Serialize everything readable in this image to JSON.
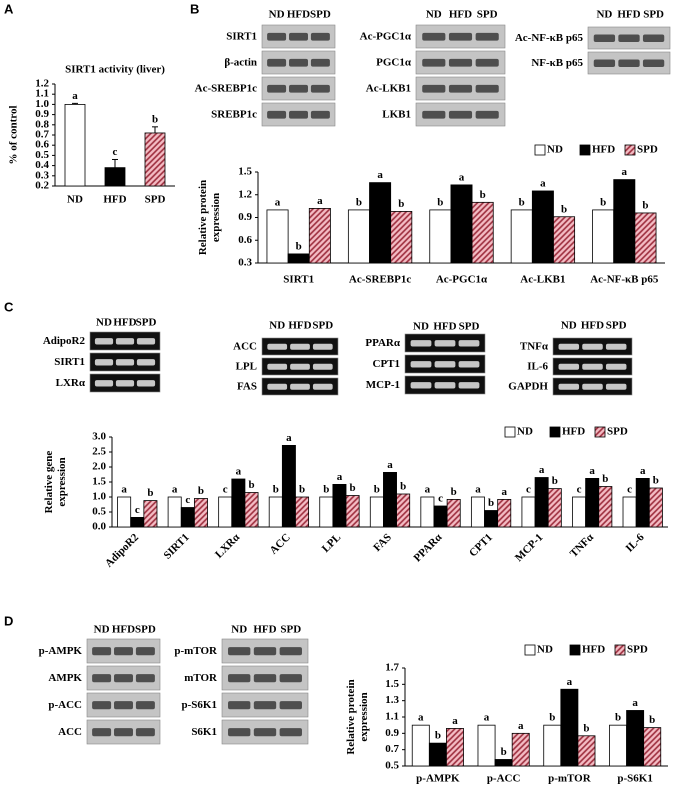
{
  "panels": [
    "A",
    "B",
    "C",
    "D"
  ],
  "blots": [
    {
      "lanes": [
        "ND",
        "HFD",
        "SPD"
      ],
      "rows": [
        "SIRT1",
        "β-actin",
        "Ac-SREBP1c",
        "SREBP1c"
      ]
    },
    {
      "lanes": [
        "ND",
        "HFD",
        "SPD"
      ],
      "rows": [
        "Ac-PGC1α",
        "PGC1α",
        "Ac-LKB1",
        "LKB1"
      ]
    },
    {
      "lanes": [
        "ND",
        "HFD",
        "SPD"
      ],
      "rows": [
        "Ac-NF-κB p65",
        "NF-κB p65"
      ]
    },
    {
      "lanes": [
        "ND",
        "HFD",
        "SPD"
      ],
      "rows": [
        "AdipoR2",
        "SIRT1",
        "LXRα"
      ]
    },
    {
      "lanes": [
        "ND",
        "HFD",
        "SPD"
      ],
      "rows": [
        "ACC",
        "LPL",
        "FAS"
      ]
    },
    {
      "lanes": [
        "ND",
        "HFD",
        "SPD"
      ],
      "rows": [
        "PPARα",
        "CPT1",
        "MCP-1"
      ]
    },
    {
      "lanes": [
        "ND",
        "HFD",
        "SPD"
      ],
      "rows": [
        "TNFα",
        "IL-6",
        "GAPDH"
      ]
    },
    {
      "lanes": [
        "ND",
        "HFD",
        "SPD"
      ],
      "rows": [
        "p-AMPK",
        "AMPK",
        "p-ACC",
        "ACC"
      ]
    },
    {
      "lanes": [
        "ND",
        "HFD",
        "SPD"
      ],
      "rows": [
        "p-mTOR",
        "mTOR",
        "p-S6K1",
        "S6K1"
      ]
    }
  ],
  "chart_data": [
    {
      "type": "bar",
      "title": "SIRT1 activity (liver)",
      "y_label": [
        "% of control"
      ],
      "categories": [
        "ND",
        "HFD",
        "SPD"
      ],
      "values": [
        1.0,
        0.38,
        0.72
      ],
      "errors": [
        0.01,
        0.08,
        0.06
      ],
      "labels": [
        "a",
        "c",
        "b"
      ],
      "colors": [
        "#ffffff",
        "#000000",
        "#f4bcc4"
      ],
      "hatched": [
        false,
        false,
        true
      ],
      "hatch_color": "#9c2c3c",
      "ylim": [
        0.2,
        1.2
      ],
      "yticks": [
        0.2,
        0.3,
        0.4,
        0.5,
        0.6,
        0.7,
        0.8,
        0.9,
        {
          "value": 1.0,
          "label": "1.0"
        },
        1.1,
        1.2
      ]
    },
    {
      "type": "bar",
      "y_label": [
        "Relative protein",
        "expression"
      ],
      "categories": [
        "SIRT1",
        "Ac-SREBP1c",
        "Ac-PGC1α",
        "Ac-LKB1",
        "Ac-NF-κB p65"
      ],
      "series": [
        {
          "name": "ND",
          "color": "#ffffff",
          "values": [
            1.0,
            1.0,
            1.0,
            1.0,
            1.0
          ],
          "labels": [
            "a",
            "b",
            "b",
            "b",
            "b"
          ]
        },
        {
          "name": "HFD",
          "color": "#000000",
          "values": [
            0.42,
            1.36,
            1.33,
            1.25,
            1.4
          ],
          "labels": [
            "b",
            "a",
            "a",
            "a",
            "a"
          ]
        },
        {
          "name": "SPD",
          "color": "#f4bcc4",
          "hatch_color": "#9c2c3c",
          "values": [
            1.02,
            0.98,
            1.1,
            0.91,
            0.96
          ],
          "labels": [
            "a",
            "b",
            "b",
            "b",
            "b"
          ]
        }
      ],
      "ylim": [
        0.3,
        1.5
      ],
      "yticks": [
        0.3,
        0.6,
        0.9,
        1.2,
        1.5
      ],
      "legend": "top-right"
    },
    {
      "type": "bar",
      "y_label": [
        "Relative gene",
        "expression"
      ],
      "categories": [
        "AdipoR2",
        "SIRT1",
        "LXRα",
        "ACC",
        "LPL",
        "FAS",
        "PPARα",
        "CPT1",
        "MCP-1",
        "TNFα",
        "IL-6"
      ],
      "series": [
        {
          "name": "ND",
          "color": "#ffffff",
          "values": [
            1.0,
            1.0,
            1.0,
            1.0,
            1.0,
            1.0,
            1.0,
            1.0,
            1.0,
            1.0,
            1.0
          ],
          "labels": [
            "a",
            "a",
            "c",
            "b",
            "b",
            "b",
            "a",
            "a",
            "c",
            "c",
            "c"
          ]
        },
        {
          "name": "HFD",
          "color": "#000000",
          "values": [
            0.32,
            0.65,
            1.6,
            2.72,
            1.42,
            1.82,
            0.7,
            0.55,
            1.65,
            1.62,
            1.62
          ],
          "labels": [
            "c",
            "c",
            "a",
            "a",
            "a",
            "a",
            "c",
            "b",
            "a",
            "a",
            "a"
          ]
        },
        {
          "name": "SPD",
          "color": "#f4bcc4",
          "hatch_color": "#9c2c3c",
          "values": [
            0.88,
            0.95,
            1.15,
            1.0,
            1.05,
            1.1,
            0.92,
            0.92,
            1.28,
            1.35,
            1.3
          ],
          "labels": [
            "b",
            "b",
            "b",
            "b",
            "b",
            "b",
            "b",
            "a",
            "b",
            "b",
            "b"
          ]
        }
      ],
      "ylim": [
        0,
        3
      ],
      "yticks": [
        {
          "value": 0,
          "label": "0.0"
        },
        0.5,
        {
          "value": 1,
          "label": "1.0"
        },
        1.5,
        {
          "value": 2,
          "label": "2.0"
        },
        2.5,
        {
          "value": 3,
          "label": "3.0"
        }
      ],
      "legend": "top-right"
    },
    {
      "type": "bar",
      "y_label": [
        "Relative protein",
        "expression"
      ],
      "categories": [
        "p-AMPK",
        "p-ACC",
        "p-mTOR",
        "p-S6K1"
      ],
      "series": [
        {
          "name": "ND",
          "color": "#ffffff",
          "values": [
            1.0,
            1.0,
            1.0,
            1.0
          ],
          "labels": [
            "a",
            "a",
            "b",
            "b"
          ]
        },
        {
          "name": "HFD",
          "color": "#000000",
          "values": [
            0.78,
            0.58,
            1.44,
            1.18
          ],
          "labels": [
            "b",
            "b",
            "a",
            "a"
          ]
        },
        {
          "name": "SPD",
          "color": "#f4bcc4",
          "hatch_color": "#9c2c3c",
          "values": [
            0.96,
            0.9,
            0.87,
            0.97
          ],
          "labels": [
            "a",
            "a",
            "b",
            "b"
          ]
        }
      ],
      "ylim": [
        0.5,
        1.7
      ],
      "yticks": [
        0.5,
        0.7,
        0.9,
        1.1,
        1.3,
        1.5,
        1.7
      ],
      "legend": "top-right"
    }
  ]
}
